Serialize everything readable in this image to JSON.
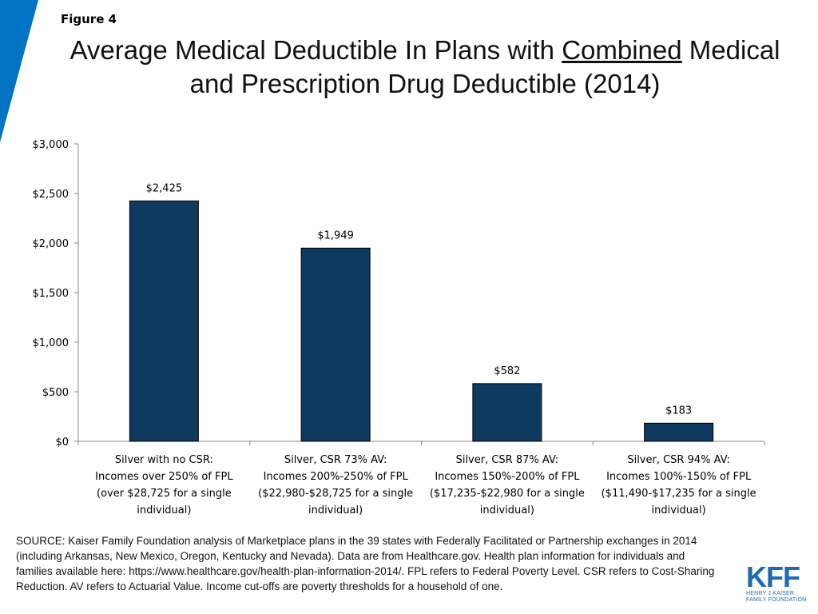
{
  "figure_label": "Figure 4",
  "title": {
    "line1_before": "Average Medical Deductible In Plans with ",
    "line1_underlined": "Combined",
    "line1_after": " Medical",
    "line2": "and Prescription Drug Deductible (2014)"
  },
  "chart_data": {
    "type": "bar",
    "title": "Average Medical Deductible In Plans with Combined Medical and Prescription Drug Deductible (2014)",
    "xlabel": "",
    "ylabel": "",
    "ylim": [
      0,
      3000
    ],
    "y_ticks": [
      0,
      500,
      1000,
      1500,
      2000,
      2500,
      3000
    ],
    "y_tick_labels": [
      "$0",
      "$500",
      "$1,000",
      "$1,500",
      "$2,000",
      "$2,500",
      "$3,000"
    ],
    "grid": false,
    "categories": [
      [
        "Silver with no CSR:",
        "Incomes over 250% of FPL",
        "(over $28,725 for a single",
        "individual)"
      ],
      [
        "Silver, CSR 73% AV:",
        "Incomes 200%-250% of FPL",
        "($22,980-$28,725 for a single",
        "individual)"
      ],
      [
        "Silver, CSR 87% AV:",
        "Incomes 150%-200% of FPL",
        "($17,235-$22,980 for a single",
        "individual)"
      ],
      [
        "Silver, CSR 94% AV:",
        "Incomes 100%-150% of FPL",
        "($11,490-$17,235 for a single",
        "individual)"
      ]
    ],
    "values": [
      2425,
      1949,
      582,
      183
    ],
    "data_labels": [
      "$2,425",
      "$1,949",
      "$582",
      "$183"
    ],
    "bar_color": "#0f3a5f"
  },
  "source": "SOURCE: Kaiser Family Foundation analysis of Marketplace plans in the 39 states with Federally Facilitated or Partnership exchanges in 2014 (including Arkansas, New Mexico, Oregon, Kentucky and Nevada). Data are from Healthcare.gov. Health plan information for individuals and families available here: https://www.healthcare.gov/health-plan-information-2014/. FPL refers to Federal Poverty Level. CSR refers to Cost-Sharing Reduction. AV refers to Actuarial Value. Income cut-offs are poverty thresholds for a household of one.",
  "logo": {
    "mark": "KFF",
    "line1": "HENRY J KAISER",
    "line2": "FAMILY FOUNDATION"
  },
  "colors": {
    "accent": "#0073c2",
    "bar": "#0f3a5f",
    "logo": "#1d6ab3"
  }
}
